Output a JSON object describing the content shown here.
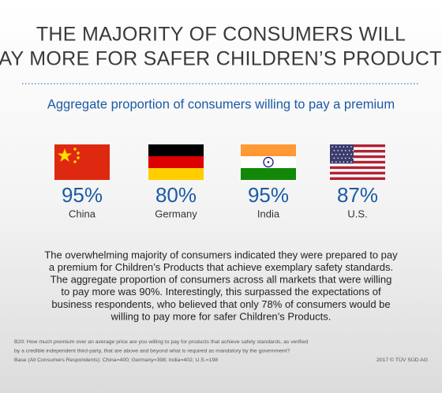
{
  "header": {
    "title_lines": [
      "THE MAJORITY OF CONSUMERS WILL",
      "PAY MORE FOR SAFER CHILDREN’S PRODUCTS"
    ]
  },
  "subtitle": "Aggregate proportion of consumers willing to pay a premium",
  "items": [
    {
      "value": "95%",
      "country": "China"
    },
    {
      "value": "80%",
      "country": "Germany"
    },
    {
      "value": "95%",
      "country": "India"
    },
    {
      "value": "87%",
      "country": "U.S."
    }
  ],
  "body_lines": [
    "The overwhelming majority of consumers indicated they were prepared to pay",
    "a premium for Children’s Products that achieve exemplary safety standards.",
    "The aggregate proportion of consumers across all markets that were willing",
    "to pay more was 90%. Interestingly, this surpassed the expectations of",
    "business respondents, who believed that only 78% of consumers would be",
    "willing to pay more for safer Children’s Products."
  ],
  "footnote_lines": [
    "B20: How much premium over an average price are you willing to pay for products that achieve safety standards, as verified",
    "by a credible independent third-party, that are above and beyond what is required as mandatory by the government?",
    "Base (All Consumers Respondents): China=400; Germany=398; India=402; U.S.=198"
  ],
  "copyright": "2017 © TÜV SÜD AG"
}
